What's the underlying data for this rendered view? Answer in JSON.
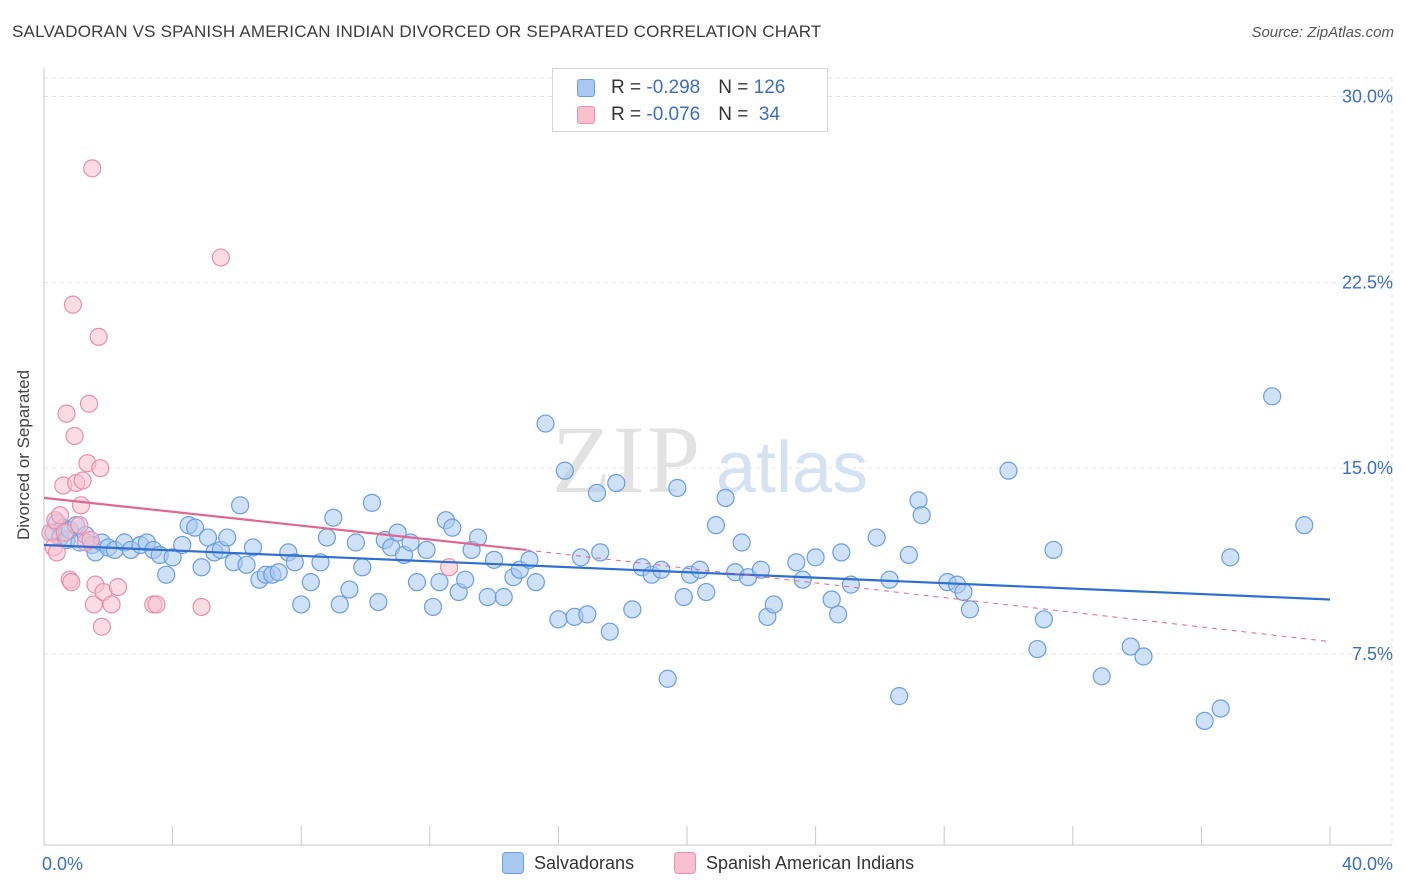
{
  "title": "SALVADORAN VS SPANISH AMERICAN INDIAN DIVORCED OR SEPARATED CORRELATION CHART",
  "source": "Source: ZipAtlas.com",
  "watermark": {
    "zip": "ZIP",
    "atlas": "atlas"
  },
  "legend": {
    "rows": [
      {
        "r_label": "R = ",
        "r_value": "-0.298",
        "n_label": "N = ",
        "n_value": "126",
        "color": "#a8c8f0",
        "stroke": "#6b9ee0"
      },
      {
        "r_label": "R = ",
        "r_value": "-0.076",
        "n_label": "N = ",
        "n_value": " 34",
        "color": "#f8bfd0",
        "stroke": "#e890ac"
      }
    ]
  },
  "bottom_legend": {
    "salvadorans": "Salvadorans",
    "spanish": "Spanish American Indians"
  },
  "chart_data": {
    "type": "scatter",
    "title": "SALVADORAN VS SPANISH AMERICAN INDIAN DIVORCED OR SEPARATED CORRELATION CHART",
    "xlabel": "",
    "ylabel": "Divorced or Separated",
    "xlim": [
      0,
      40
    ],
    "ylim": [
      0,
      31
    ],
    "x_tick_labels": [
      "0.0%",
      "40.0%"
    ],
    "y_ticks": [
      7.5,
      15.0,
      22.5,
      30.0
    ],
    "y_tick_labels": [
      "7.5%",
      "15.0%",
      "22.5%",
      "30.0%"
    ],
    "grid": true,
    "colors": {
      "blue": "#6b9ee0",
      "blue_fill": "#a8c8f0",
      "blue_line": "#2f6fcf",
      "pink": "#e890ac",
      "pink_fill": "#f8bfd0",
      "pink_line": "#e06890",
      "axis_text": "#3b6fc4"
    },
    "series": [
      {
        "name": "Salvadorans",
        "r": -0.298,
        "n": 126,
        "trend": {
          "x": [
            0.0,
            40.0
          ],
          "y": [
            11.9,
            9.7
          ]
        },
        "points": [
          [
            0.3,
            12.4
          ],
          [
            0.4,
            12.8
          ],
          [
            0.5,
            12.2
          ],
          [
            0.6,
            12.6
          ],
          [
            0.7,
            12.1
          ],
          [
            0.8,
            12.5
          ],
          [
            1.0,
            12.7
          ],
          [
            1.1,
            12.0
          ],
          [
            1.3,
            12.3
          ],
          [
            1.5,
            11.9
          ],
          [
            1.6,
            11.6
          ],
          [
            1.8,
            12.0
          ],
          [
            2.0,
            11.8
          ],
          [
            2.2,
            11.7
          ],
          [
            2.5,
            12.0
          ],
          [
            2.7,
            11.7
          ],
          [
            3.0,
            11.9
          ],
          [
            3.2,
            12.0
          ],
          [
            3.4,
            11.7
          ],
          [
            3.6,
            11.5
          ],
          [
            3.8,
            10.7
          ],
          [
            4.0,
            11.4
          ],
          [
            4.3,
            11.9
          ],
          [
            4.5,
            12.7
          ],
          [
            4.7,
            12.6
          ],
          [
            4.9,
            11.0
          ],
          [
            5.1,
            12.2
          ],
          [
            5.3,
            11.6
          ],
          [
            5.5,
            11.7
          ],
          [
            5.7,
            12.2
          ],
          [
            5.9,
            11.2
          ],
          [
            6.1,
            13.5
          ],
          [
            6.3,
            11.1
          ],
          [
            6.5,
            11.8
          ],
          [
            6.7,
            10.5
          ],
          [
            6.9,
            10.7
          ],
          [
            7.1,
            10.7
          ],
          [
            7.3,
            10.8
          ],
          [
            7.6,
            11.6
          ],
          [
            7.8,
            11.2
          ],
          [
            8.0,
            9.5
          ],
          [
            8.3,
            10.4
          ],
          [
            8.6,
            11.2
          ],
          [
            8.8,
            12.2
          ],
          [
            9.0,
            13.0
          ],
          [
            9.2,
            9.5
          ],
          [
            9.5,
            10.1
          ],
          [
            9.7,
            12.0
          ],
          [
            9.9,
            11.0
          ],
          [
            10.2,
            13.6
          ],
          [
            10.4,
            9.6
          ],
          [
            10.6,
            12.1
          ],
          [
            10.8,
            11.8
          ],
          [
            11.0,
            12.4
          ],
          [
            11.2,
            11.5
          ],
          [
            11.4,
            12.0
          ],
          [
            11.6,
            10.4
          ],
          [
            11.9,
            11.7
          ],
          [
            12.1,
            9.4
          ],
          [
            12.3,
            10.4
          ],
          [
            12.5,
            12.9
          ],
          [
            12.7,
            12.6
          ],
          [
            12.9,
            10.0
          ],
          [
            13.1,
            10.5
          ],
          [
            13.3,
            11.7
          ],
          [
            13.5,
            12.2
          ],
          [
            13.8,
            9.8
          ],
          [
            14.0,
            11.3
          ],
          [
            14.3,
            9.8
          ],
          [
            14.6,
            10.6
          ],
          [
            14.8,
            10.9
          ],
          [
            15.1,
            11.3
          ],
          [
            15.3,
            10.4
          ],
          [
            15.6,
            16.8
          ],
          [
            16.0,
            8.9
          ],
          [
            16.2,
            14.9
          ],
          [
            16.5,
            9.0
          ],
          [
            16.7,
            11.4
          ],
          [
            16.9,
            9.1
          ],
          [
            17.3,
            11.6
          ],
          [
            17.2,
            14.0
          ],
          [
            17.6,
            8.4
          ],
          [
            17.8,
            14.4
          ],
          [
            18.3,
            9.3
          ],
          [
            18.6,
            11.0
          ],
          [
            18.9,
            10.7
          ],
          [
            19.2,
            10.9
          ],
          [
            19.4,
            6.5
          ],
          [
            19.7,
            14.2
          ],
          [
            19.9,
            9.8
          ],
          [
            20.1,
            10.7
          ],
          [
            20.4,
            10.9
          ],
          [
            20.6,
            10.0
          ],
          [
            20.9,
            12.7
          ],
          [
            21.2,
            13.8
          ],
          [
            21.5,
            10.8
          ],
          [
            21.7,
            12.0
          ],
          [
            21.9,
            10.6
          ],
          [
            22.3,
            10.9
          ],
          [
            22.5,
            9.0
          ],
          [
            22.7,
            9.5
          ],
          [
            23.4,
            11.2
          ],
          [
            23.6,
            10.5
          ],
          [
            24.0,
            11.4
          ],
          [
            24.5,
            9.7
          ],
          [
            24.7,
            9.1
          ],
          [
            24.8,
            11.6
          ],
          [
            25.1,
            10.3
          ],
          [
            25.9,
            12.2
          ],
          [
            26.3,
            10.5
          ],
          [
            26.6,
            5.8
          ],
          [
            26.9,
            11.5
          ],
          [
            27.2,
            13.7
          ],
          [
            27.3,
            13.1
          ],
          [
            28.1,
            10.4
          ],
          [
            28.4,
            10.3
          ],
          [
            28.6,
            10.0
          ],
          [
            28.8,
            9.3
          ],
          [
            30.0,
            14.9
          ],
          [
            30.9,
            7.7
          ],
          [
            31.4,
            11.7
          ],
          [
            31.1,
            8.9
          ],
          [
            32.9,
            6.6
          ],
          [
            33.8,
            7.8
          ],
          [
            34.2,
            7.4
          ],
          [
            36.1,
            4.8
          ],
          [
            36.6,
            5.3
          ],
          [
            36.9,
            11.4
          ],
          [
            38.2,
            17.9
          ],
          [
            39.2,
            12.7
          ]
        ]
      },
      {
        "name": "Spanish American Indians",
        "r": -0.076,
        "n": 34,
        "trend": {
          "x": [
            0.0,
            15.0
          ],
          "y": [
            13.8,
            11.7
          ]
        },
        "trend_dashed": {
          "x": [
            15.0,
            40.0
          ],
          "y": [
            11.7,
            8.0
          ]
        },
        "points": [
          [
            0.2,
            12.4
          ],
          [
            0.3,
            11.8
          ],
          [
            0.35,
            12.9
          ],
          [
            0.4,
            11.6
          ],
          [
            0.5,
            13.1
          ],
          [
            0.6,
            14.3
          ],
          [
            0.65,
            12.4
          ],
          [
            0.7,
            17.2
          ],
          [
            0.8,
            10.5
          ],
          [
            0.85,
            10.4
          ],
          [
            0.9,
            21.6
          ],
          [
            0.95,
            16.3
          ],
          [
            1.0,
            14.4
          ],
          [
            1.1,
            12.7
          ],
          [
            1.15,
            13.5
          ],
          [
            1.2,
            14.5
          ],
          [
            1.3,
            12.0
          ],
          [
            1.35,
            15.2
          ],
          [
            1.4,
            17.6
          ],
          [
            1.45,
            12.1
          ],
          [
            1.5,
            27.1
          ],
          [
            1.55,
            9.5
          ],
          [
            1.6,
            10.3
          ],
          [
            1.7,
            20.3
          ],
          [
            1.75,
            15.0
          ],
          [
            1.8,
            8.6
          ],
          [
            1.85,
            10.0
          ],
          [
            2.1,
            9.5
          ],
          [
            2.3,
            10.2
          ],
          [
            3.4,
            9.5
          ],
          [
            3.5,
            9.5
          ],
          [
            4.9,
            9.4
          ],
          [
            5.5,
            23.5
          ],
          [
            12.6,
            11.0
          ]
        ]
      }
    ]
  }
}
